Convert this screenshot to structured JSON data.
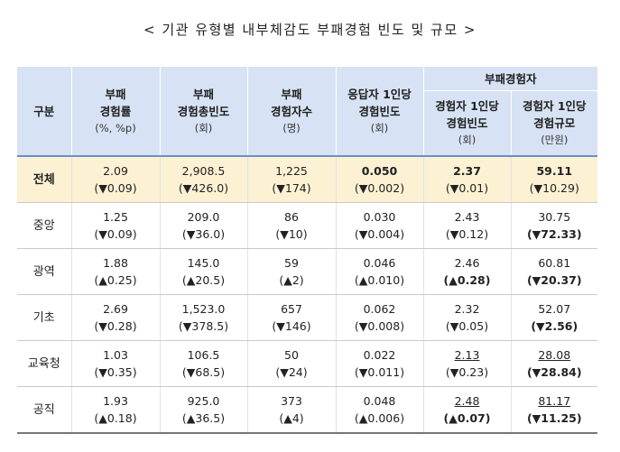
{
  "title": "< 기관 유형별 내부체감도 부패경험 빈도 및 규모 >",
  "header": {
    "col0": "구분",
    "col1": {
      "line1": "부패",
      "line2": "경험률",
      "unit": "(%, %p)"
    },
    "col2": {
      "line1": "부패",
      "line2": "경험총빈도",
      "unit": "(회)"
    },
    "col3": {
      "line1": "부패",
      "line2": "경험자수",
      "unit": "(명)"
    },
    "col4": {
      "line1": "응답자 1인당",
      "line2": "경험빈도",
      "unit": "(회)"
    },
    "group": "부패경험자",
    "col5": {
      "line1": "경험자 1인당",
      "line2": "경험빈도",
      "unit": "(회)"
    },
    "col6": {
      "line1": "경험자 1인당",
      "line2": "경험규모",
      "unit": "(만원)"
    }
  },
  "rows": [
    {
      "label": "전체",
      "c1": {
        "v": "2.09",
        "d": "(▼0.09)"
      },
      "c2": {
        "v": "2,908.5",
        "d": "(▼426.0)"
      },
      "c3": {
        "v": "1,225",
        "d": "(▼174)"
      },
      "c4": {
        "v": "0.050",
        "d": "(▼0.002)"
      },
      "c5": {
        "v": "2.37",
        "d": "(▼0.01)"
      },
      "c6": {
        "v": "59.11",
        "d": "(▼10.29)"
      }
    },
    {
      "label": "중앙",
      "c1": {
        "v": "1.25",
        "d": "(▼0.09)"
      },
      "c2": {
        "v": "209.0",
        "d": "(▼36.0)"
      },
      "c3": {
        "v": "86",
        "d": "(▼10)"
      },
      "c4": {
        "v": "0.030",
        "d": "(▼0.004)"
      },
      "c5": {
        "v": "2.43",
        "d": "(▼0.12)"
      },
      "c6": {
        "v": "30.75",
        "d": "(▼72.33)"
      }
    },
    {
      "label": "광역",
      "c1": {
        "v": "1.88",
        "d": "(▲0.25)"
      },
      "c2": {
        "v": "145.0",
        "d": "(▲20.5)"
      },
      "c3": {
        "v": "59",
        "d": "(▲2)"
      },
      "c4": {
        "v": "0.046",
        "d": "(▲0.010)"
      },
      "c5": {
        "v": "2.46",
        "d": "(▲0.28)"
      },
      "c6": {
        "v": "60.81",
        "d": "(▼20.37)"
      }
    },
    {
      "label": "기초",
      "c1": {
        "v": "2.69",
        "d": "(▼0.28)"
      },
      "c2": {
        "v": "1,523.0",
        "d": "(▼378.5)"
      },
      "c3": {
        "v": "657",
        "d": "(▼146)"
      },
      "c4": {
        "v": "0.062",
        "d": "(▼0.008)"
      },
      "c5": {
        "v": "2.32",
        "d": "(▼0.05)"
      },
      "c6": {
        "v": "52.07",
        "d": "(▼2.56)"
      }
    },
    {
      "label": "교육청",
      "c1": {
        "v": "1.03",
        "d": "(▼0.35)"
      },
      "c2": {
        "v": "106.5",
        "d": "(▼68.5)"
      },
      "c3": {
        "v": "50",
        "d": "(▼24)"
      },
      "c4": {
        "v": "0.022",
        "d": "(▼0.011)"
      },
      "c5": {
        "v": "2.13",
        "d": "(▼0.23)"
      },
      "c6": {
        "v": "28.08",
        "d": "(▼28.84)"
      }
    },
    {
      "label": "공직",
      "c1": {
        "v": "1.93",
        "d": "(▲0.18)"
      },
      "c2": {
        "v": "925.0",
        "d": "(▲36.5)"
      },
      "c3": {
        "v": "373",
        "d": "(▲4)"
      },
      "c4": {
        "v": "0.048",
        "d": "(▲0.006)"
      },
      "c5": {
        "v": "2.48",
        "d": "(▲0.07)"
      },
      "c6": {
        "v": "81.17",
        "d": "(▼11.25)"
      }
    }
  ]
}
